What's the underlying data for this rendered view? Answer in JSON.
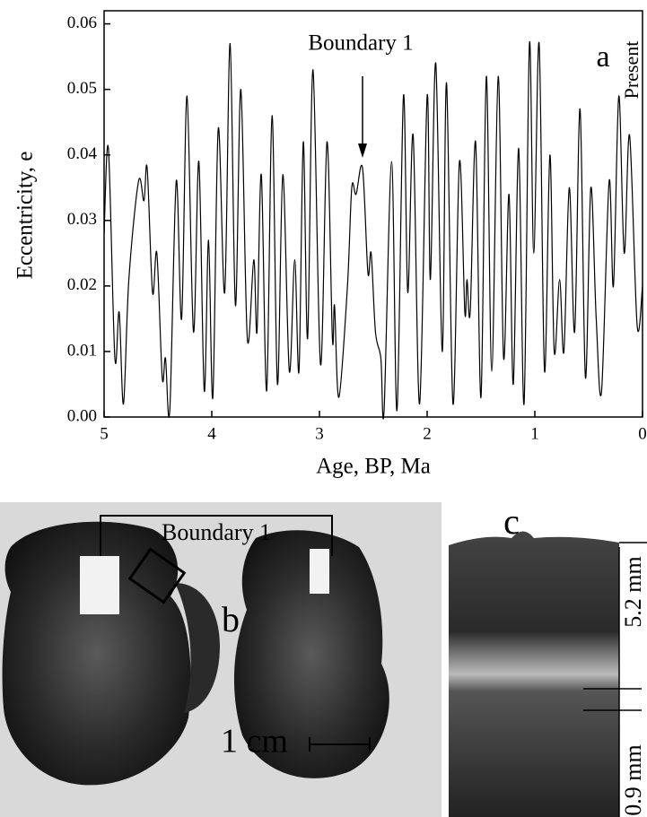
{
  "chart_data": {
    "type": "line",
    "x_label": "Age, BP, Ma",
    "y_label": "Eccentricity, e",
    "annotations": {
      "boundary": "Boundary 1",
      "boundary_x": 2.6,
      "panel": "a",
      "present": "Present"
    },
    "xlim": [
      5,
      0
    ],
    "xticks": [
      5,
      4,
      3,
      2,
      1,
      0
    ],
    "ylim": [
      0,
      0.062
    ],
    "yticks": [
      {
        "value": 0,
        "label": "0.00"
      },
      {
        "value": 0.01,
        "label": "0.01"
      },
      {
        "value": 0.02,
        "label": "0.02"
      },
      {
        "value": 0.03,
        "label": "0.03"
      },
      {
        "value": 0.04,
        "label": "0.04"
      },
      {
        "value": 0.05,
        "label": "0.05"
      },
      {
        "value": 0.06,
        "label": "0.06"
      }
    ],
    "color": "#000000",
    "x": [
      5.0,
      4.96,
      4.9,
      4.86,
      4.82,
      4.77,
      4.68,
      4.63,
      4.6,
      4.55,
      4.51,
      4.46,
      4.43,
      4.39,
      4.33,
      4.28,
      4.23,
      4.17,
      4.12,
      4.07,
      4.03,
      3.99,
      3.94,
      3.88,
      3.83,
      3.78,
      3.73,
      3.67,
      3.61,
      3.58,
      3.54,
      3.49,
      3.44,
      3.39,
      3.34,
      3.28,
      3.23,
      3.19,
      3.15,
      3.11,
      3.06,
      2.99,
      2.93,
      2.88,
      2.86,
      2.82,
      2.74,
      2.7,
      2.66,
      2.6,
      2.55,
      2.52,
      2.48,
      2.43,
      2.4,
      2.33,
      2.28,
      2.22,
      2.18,
      2.13,
      2.07,
      2.0,
      1.97,
      1.92,
      1.86,
      1.82,
      1.76,
      1.7,
      1.65,
      1.63,
      1.6,
      1.55,
      1.5,
      1.45,
      1.4,
      1.34,
      1.29,
      1.24,
      1.2,
      1.15,
      1.1,
      1.05,
      1.01,
      0.96,
      0.91,
      0.86,
      0.82,
      0.77,
      0.73,
      0.68,
      0.63,
      0.58,
      0.53,
      0.48,
      0.43,
      0.38,
      0.31,
      0.27,
      0.22,
      0.17,
      0.12,
      0.05,
      0.0
    ],
    "values": [
      0.028,
      0.041,
      0.009,
      0.016,
      0.002,
      0.021,
      0.036,
      0.033,
      0.038,
      0.019,
      0.025,
      0.006,
      0.009,
      0.001,
      0.036,
      0.015,
      0.049,
      0.013,
      0.039,
      0.004,
      0.027,
      0.003,
      0.044,
      0.019,
      0.057,
      0.017,
      0.05,
      0.012,
      0.024,
      0.013,
      0.037,
      0.004,
      0.046,
      0.005,
      0.037,
      0.007,
      0.024,
      0.007,
      0.042,
      0.012,
      0.053,
      0.008,
      0.042,
      0.012,
      0.017,
      0.003,
      0.02,
      0.035,
      0.034,
      0.038,
      0.022,
      0.025,
      0.013,
      0.009,
      0.001,
      0.039,
      0.001,
      0.049,
      0.019,
      0.043,
      0.002,
      0.049,
      0.021,
      0.054,
      0.01,
      0.051,
      0.002,
      0.039,
      0.016,
      0.021,
      0.016,
      0.042,
      0.003,
      0.052,
      0.007,
      0.052,
      0.009,
      0.034,
      0.005,
      0.041,
      0.002,
      0.057,
      0.025,
      0.057,
      0.007,
      0.04,
      0.01,
      0.021,
      0.01,
      0.035,
      0.013,
      0.047,
      0.006,
      0.035,
      0.015,
      0.004,
      0.036,
      0.02,
      0.049,
      0.025,
      0.043,
      0.014,
      0.02
    ]
  },
  "panel_b": {
    "label": "b",
    "boundary": "Boundary 1",
    "scale": "1 cm"
  },
  "panel_c": {
    "label": "c",
    "upper": "5.2 mm",
    "lower": "0.9 mm"
  }
}
